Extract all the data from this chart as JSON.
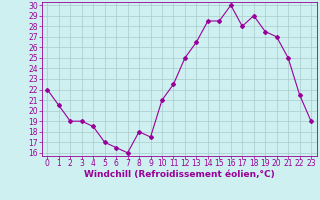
{
  "x": [
    0,
    1,
    2,
    3,
    4,
    5,
    6,
    7,
    8,
    9,
    10,
    11,
    12,
    13,
    14,
    15,
    16,
    17,
    18,
    19,
    20,
    21,
    22,
    23
  ],
  "y": [
    22,
    20.5,
    19,
    19,
    18.5,
    17,
    16.5,
    16,
    18,
    17.5,
    21,
    22.5,
    25,
    26.5,
    28.5,
    28.5,
    30,
    28,
    29,
    27.5,
    27,
    25,
    21.5,
    19
  ],
  "line_color": "#990099",
  "marker": "D",
  "marker_size": 2,
  "bg_color": "#cff0f0",
  "grid_color": "#aacccc",
  "xlabel": "Windchill (Refroidissement éolien,°C)",
  "xlabel_color": "#990099",
  "tick_color": "#990099",
  "ylim": [
    16,
    30
  ],
  "xlim": [
    -0.5,
    23.5
  ],
  "yticks": [
    16,
    17,
    18,
    19,
    20,
    21,
    22,
    23,
    24,
    25,
    26,
    27,
    28,
    29,
    30
  ],
  "xticks": [
    0,
    1,
    2,
    3,
    4,
    5,
    6,
    7,
    8,
    9,
    10,
    11,
    12,
    13,
    14,
    15,
    16,
    17,
    18,
    19,
    20,
    21,
    22,
    23
  ],
  "tick_fontsize": 5.5,
  "xlabel_fontsize": 6.5
}
